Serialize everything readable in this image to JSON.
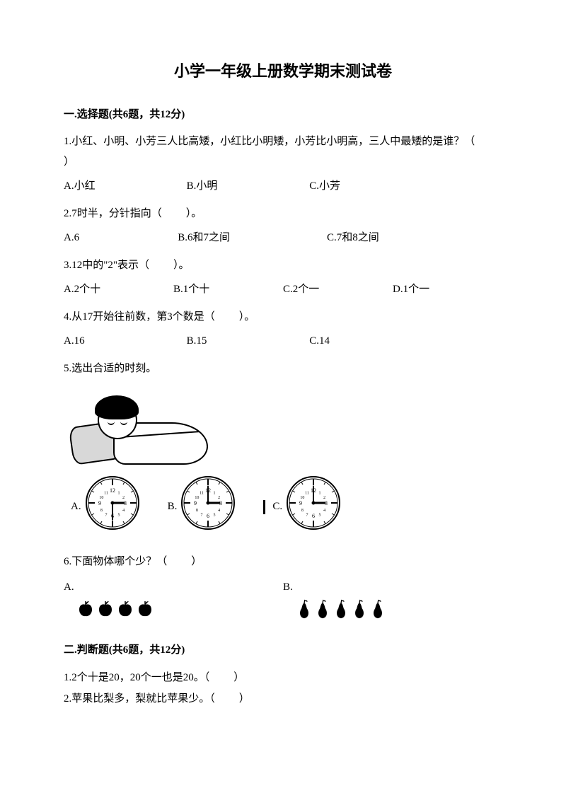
{
  "title": "小学一年级上册数学期末测试卷",
  "section1": {
    "header": "一.选择题(共6题，共12分)",
    "q1": {
      "text": "1.小红、小明、小芳三人比高矮，小红比小明矮，小芳比小明高，三人中最矮的是谁？（",
      "textEnd": "）",
      "a": "A.小红",
      "b": "B.小明",
      "c": "C.小芳"
    },
    "q2": {
      "text": "2.7时半，分针指向（",
      "textEnd": "）。",
      "a": "A.6",
      "b": "B.6和7之间",
      "c": "C.7和8之间"
    },
    "q3": {
      "text": "3.12中的\"2\"表示（",
      "textEnd": "）。",
      "a": "A.2个十",
      "b": "B.1个十",
      "c": "C.2个一",
      "d": "D.1个一"
    },
    "q4": {
      "text": "4.从17开始往前数，第3个数是（",
      "textEnd": "）。",
      "a": "A.16",
      "b": "B.15",
      "c": "C.14"
    },
    "q5": {
      "text": "5.选出合适的时刻。",
      "a": "A.",
      "b": "B.",
      "c": "C.",
      "clocks": [
        {
          "hourAngle": 90,
          "minuteAngle": 180
        },
        {
          "hourAngle": 90,
          "minuteAngle": 0
        },
        {
          "hourAngle": 90,
          "minuteAngle": 0
        }
      ]
    },
    "q6": {
      "text": "6.下面物体哪个少？（",
      "textEnd": "）",
      "a": "A.",
      "b": "B.",
      "appleCount": 4,
      "pearCount": 5
    }
  },
  "section2": {
    "header": "二.判断题(共6题，共12分)",
    "q1": {
      "text": "1.2个十是20，20个一也是20。（",
      "textEnd": "）"
    },
    "q2": {
      "text": "2.苹果比梨多，梨就比苹果少。（",
      "textEnd": "）"
    }
  },
  "style": {
    "clockSize": 76,
    "clockStroke": "#000000",
    "clockFill": "#ffffff",
    "tickColor": "#000000",
    "handColor": "#000000",
    "fruitColor": "#000000",
    "appleSize": 26,
    "pearSize": 24
  }
}
